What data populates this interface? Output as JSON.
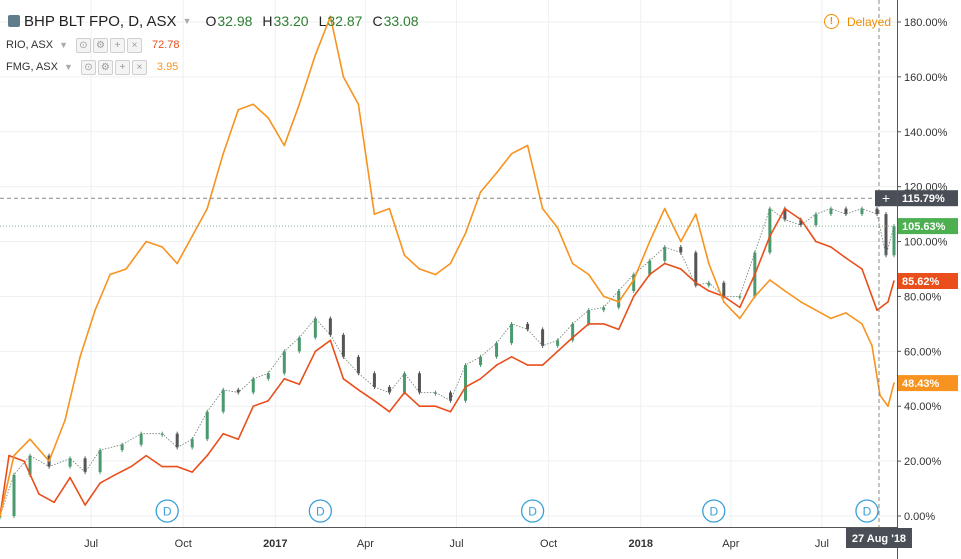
{
  "header": {
    "symbol_title": "BHP BLT FPO, D, ASX",
    "ohlc": [
      {
        "label": "O",
        "value": "32.98"
      },
      {
        "label": "H",
        "value": "33.20"
      },
      {
        "label": "L",
        "value": "32.87"
      },
      {
        "label": "C",
        "value": "33.08"
      }
    ],
    "delayed_label": "Delayed",
    "delayed_icon_text": "!"
  },
  "compare": [
    {
      "name": "RIO, ASX",
      "value": "72.78",
      "color": "#e94e1b"
    },
    {
      "name": "FMG, ASX",
      "value": "3.95",
      "color": "#f7931e"
    }
  ],
  "legend_controls": [
    "⊙",
    "⚙",
    "+",
    "×"
  ],
  "price_scale": {
    "crosshair_label": "115.79%",
    "crosshair_icon": "+",
    "last_value_labels": [
      {
        "text": "105.63%",
        "series": "BHP BLT FPO",
        "color": "#4caf50"
      },
      {
        "text": "85.62%",
        "series": "RIO, ASX",
        "color": "#e94e1b"
      },
      {
        "text": "48.43%",
        "series": "FMG, ASX",
        "color": "#f7931e"
      }
    ]
  },
  "time_scale": {
    "crosshair_label": "27 Aug '18"
  },
  "dividend_markers": [
    {
      "label": "D",
      "date": "Sep 2016"
    },
    {
      "label": "D",
      "date": "Feb 2017"
    },
    {
      "label": "D",
      "date": "Sep 2017"
    },
    {
      "label": "D",
      "date": "Mar 2018"
    },
    {
      "label": "D",
      "date": "Aug 2018"
    }
  ],
  "chart_data": {
    "type": "line",
    "title": "BHP BLT FPO, D, ASX",
    "y_unit": "percent change",
    "ylim": [
      -4,
      188
    ],
    "y_ticks": [
      0,
      20,
      40,
      60,
      80,
      100,
      120,
      140,
      160,
      180
    ],
    "y_tick_labels": [
      "0.00%",
      "20.00%",
      "40.00%",
      "60.00%",
      "80.00%",
      "100.00%",
      "120.00%",
      "140.00%",
      "160.00%",
      "180.00%"
    ],
    "x_range": [
      "2016-04-01",
      "2018-09-14"
    ],
    "x_ticks": [
      {
        "label": "Jul",
        "date": "2016-07-01",
        "bold": false
      },
      {
        "label": "Oct",
        "date": "2016-10-01",
        "bold": false
      },
      {
        "label": "2017",
        "date": "2017-01-01",
        "bold": true
      },
      {
        "label": "Apr",
        "date": "2017-04-01",
        "bold": false
      },
      {
        "label": "Jul",
        "date": "2017-07-01",
        "bold": false
      },
      {
        "label": "Oct",
        "date": "2017-10-01",
        "bold": false
      },
      {
        "label": "2018",
        "date": "2018-01-01",
        "bold": true
      },
      {
        "label": "Apr",
        "date": "2018-04-01",
        "bold": false
      },
      {
        "label": "Jul",
        "date": "2018-07-01",
        "bold": false
      }
    ],
    "crosshair": {
      "value": 115.79,
      "date": "2018-08-27"
    },
    "grid": true,
    "series": [
      {
        "name": "BHP BLT FPO",
        "style": "candles",
        "color_up": "#4a9a6e",
        "color_down": "#555555",
        "points": [
          [
            "2016-04-01",
            0
          ],
          [
            "2016-04-15",
            15
          ],
          [
            "2016-05-01",
            22
          ],
          [
            "2016-05-20",
            18
          ],
          [
            "2016-06-10",
            21
          ],
          [
            "2016-06-25",
            16
          ],
          [
            "2016-07-10",
            24
          ],
          [
            "2016-08-01",
            26
          ],
          [
            "2016-08-20",
            30
          ],
          [
            "2016-09-10",
            30
          ],
          [
            "2016-09-25",
            25
          ],
          [
            "2016-10-10",
            28
          ],
          [
            "2016-10-25",
            38
          ],
          [
            "2016-11-10",
            46
          ],
          [
            "2016-11-25",
            45
          ],
          [
            "2016-12-10",
            50
          ],
          [
            "2016-12-25",
            52
          ],
          [
            "2017-01-10",
            60
          ],
          [
            "2017-01-25",
            65
          ],
          [
            "2017-02-10",
            72
          ],
          [
            "2017-02-25",
            66
          ],
          [
            "2017-03-10",
            58
          ],
          [
            "2017-03-25",
            52
          ],
          [
            "2017-04-10",
            47
          ],
          [
            "2017-04-25",
            45
          ],
          [
            "2017-05-10",
            52
          ],
          [
            "2017-05-25",
            45
          ],
          [
            "2017-06-10",
            45
          ],
          [
            "2017-06-25",
            42
          ],
          [
            "2017-07-10",
            55
          ],
          [
            "2017-07-25",
            58
          ],
          [
            "2017-08-10",
            63
          ],
          [
            "2017-08-25",
            70
          ],
          [
            "2017-09-10",
            68
          ],
          [
            "2017-09-25",
            62
          ],
          [
            "2017-10-10",
            64
          ],
          [
            "2017-10-25",
            70
          ],
          [
            "2017-11-10",
            75
          ],
          [
            "2017-11-25",
            76
          ],
          [
            "2017-12-10",
            82
          ],
          [
            "2017-12-25",
            88
          ],
          [
            "2018-01-10",
            93
          ],
          [
            "2018-01-25",
            98
          ],
          [
            "2018-02-10",
            96
          ],
          [
            "2018-02-25",
            84
          ],
          [
            "2018-03-10",
            85
          ],
          [
            "2018-03-25",
            80
          ],
          [
            "2018-04-10",
            80
          ],
          [
            "2018-04-25",
            96
          ],
          [
            "2018-05-10",
            112
          ],
          [
            "2018-05-25",
            108
          ],
          [
            "2018-06-10",
            106
          ],
          [
            "2018-06-25",
            110
          ],
          [
            "2018-07-10",
            112
          ],
          [
            "2018-07-25",
            110
          ],
          [
            "2018-08-10",
            112
          ],
          [
            "2018-08-25",
            110
          ],
          [
            "2018-09-03",
            95
          ],
          [
            "2018-09-11",
            105.63
          ]
        ]
      },
      {
        "name": "RIO, ASX",
        "style": "line",
        "color": "#e94e1b",
        "points": [
          [
            "2016-04-01",
            0
          ],
          [
            "2016-04-10",
            22
          ],
          [
            "2016-04-25",
            20
          ],
          [
            "2016-05-10",
            8
          ],
          [
            "2016-05-25",
            5
          ],
          [
            "2016-06-10",
            14
          ],
          [
            "2016-06-25",
            4
          ],
          [
            "2016-07-10",
            12
          ],
          [
            "2016-07-25",
            15
          ],
          [
            "2016-08-10",
            18
          ],
          [
            "2016-08-25",
            22
          ],
          [
            "2016-09-10",
            18
          ],
          [
            "2016-09-25",
            18
          ],
          [
            "2016-10-10",
            16
          ],
          [
            "2016-10-25",
            22
          ],
          [
            "2016-11-10",
            30
          ],
          [
            "2016-11-25",
            28
          ],
          [
            "2016-12-10",
            40
          ],
          [
            "2016-12-25",
            42
          ],
          [
            "2017-01-10",
            50
          ],
          [
            "2017-01-25",
            48
          ],
          [
            "2017-02-10",
            60
          ],
          [
            "2017-02-25",
            64
          ],
          [
            "2017-03-10",
            50
          ],
          [
            "2017-03-25",
            46
          ],
          [
            "2017-04-10",
            42
          ],
          [
            "2017-04-25",
            38
          ],
          [
            "2017-05-10",
            45
          ],
          [
            "2017-05-25",
            40
          ],
          [
            "2017-06-10",
            40
          ],
          [
            "2017-06-25",
            38
          ],
          [
            "2017-07-10",
            47
          ],
          [
            "2017-07-25",
            50
          ],
          [
            "2017-08-10",
            55
          ],
          [
            "2017-08-25",
            58
          ],
          [
            "2017-09-10",
            55
          ],
          [
            "2017-09-25",
            55
          ],
          [
            "2017-10-10",
            60
          ],
          [
            "2017-10-25",
            65
          ],
          [
            "2017-11-10",
            70
          ],
          [
            "2017-11-25",
            70
          ],
          [
            "2017-12-10",
            68
          ],
          [
            "2017-12-25",
            80
          ],
          [
            "2018-01-10",
            88
          ],
          [
            "2018-01-25",
            92
          ],
          [
            "2018-02-10",
            90
          ],
          [
            "2018-02-25",
            85
          ],
          [
            "2018-03-10",
            82
          ],
          [
            "2018-03-25",
            80
          ],
          [
            "2018-04-10",
            76
          ],
          [
            "2018-04-25",
            88
          ],
          [
            "2018-05-10",
            102
          ],
          [
            "2018-05-25",
            112
          ],
          [
            "2018-06-10",
            108
          ],
          [
            "2018-06-25",
            100
          ],
          [
            "2018-07-10",
            98
          ],
          [
            "2018-07-25",
            94
          ],
          [
            "2018-08-10",
            90
          ],
          [
            "2018-08-25",
            75
          ],
          [
            "2018-09-05",
            78
          ],
          [
            "2018-09-11",
            85.62
          ]
        ]
      },
      {
        "name": "FMG, ASX",
        "style": "line",
        "color": "#f7931e",
        "points": [
          [
            "2016-04-01",
            0
          ],
          [
            "2016-04-15",
            22
          ],
          [
            "2016-05-01",
            28
          ],
          [
            "2016-05-20",
            20
          ],
          [
            "2016-06-05",
            35
          ],
          [
            "2016-06-20",
            58
          ],
          [
            "2016-07-05",
            75
          ],
          [
            "2016-07-20",
            88
          ],
          [
            "2016-08-05",
            90
          ],
          [
            "2016-08-25",
            100
          ],
          [
            "2016-09-10",
            98
          ],
          [
            "2016-09-25",
            92
          ],
          [
            "2016-10-10",
            102
          ],
          [
            "2016-10-25",
            112
          ],
          [
            "2016-11-10",
            132
          ],
          [
            "2016-11-25",
            148
          ],
          [
            "2016-12-10",
            150
          ],
          [
            "2016-12-25",
            145
          ],
          [
            "2017-01-10",
            135
          ],
          [
            "2017-01-25",
            150
          ],
          [
            "2017-02-10",
            168
          ],
          [
            "2017-02-25",
            182
          ],
          [
            "2017-03-10",
            160
          ],
          [
            "2017-03-25",
            150
          ],
          [
            "2017-04-10",
            110
          ],
          [
            "2017-04-25",
            112
          ],
          [
            "2017-05-10",
            95
          ],
          [
            "2017-05-25",
            90
          ],
          [
            "2017-06-10",
            88
          ],
          [
            "2017-06-25",
            92
          ],
          [
            "2017-07-10",
            103
          ],
          [
            "2017-07-25",
            118
          ],
          [
            "2017-08-10",
            125
          ],
          [
            "2017-08-25",
            132
          ],
          [
            "2017-09-10",
            135
          ],
          [
            "2017-09-25",
            112
          ],
          [
            "2017-10-10",
            105
          ],
          [
            "2017-10-25",
            92
          ],
          [
            "2017-11-10",
            88
          ],
          [
            "2017-11-25",
            80
          ],
          [
            "2017-12-10",
            78
          ],
          [
            "2017-12-25",
            86
          ],
          [
            "2018-01-10",
            100
          ],
          [
            "2018-01-25",
            112
          ],
          [
            "2018-02-10",
            100
          ],
          [
            "2018-02-25",
            110
          ],
          [
            "2018-03-10",
            92
          ],
          [
            "2018-03-25",
            78
          ],
          [
            "2018-04-10",
            72
          ],
          [
            "2018-04-25",
            80
          ],
          [
            "2018-05-10",
            86
          ],
          [
            "2018-05-25",
            82
          ],
          [
            "2018-06-10",
            78
          ],
          [
            "2018-06-25",
            75
          ],
          [
            "2018-07-10",
            72
          ],
          [
            "2018-07-25",
            74
          ],
          [
            "2018-08-10",
            70
          ],
          [
            "2018-08-20",
            62
          ],
          [
            "2018-08-28",
            44
          ],
          [
            "2018-09-05",
            40
          ],
          [
            "2018-09-11",
            48.43
          ]
        ]
      }
    ]
  }
}
